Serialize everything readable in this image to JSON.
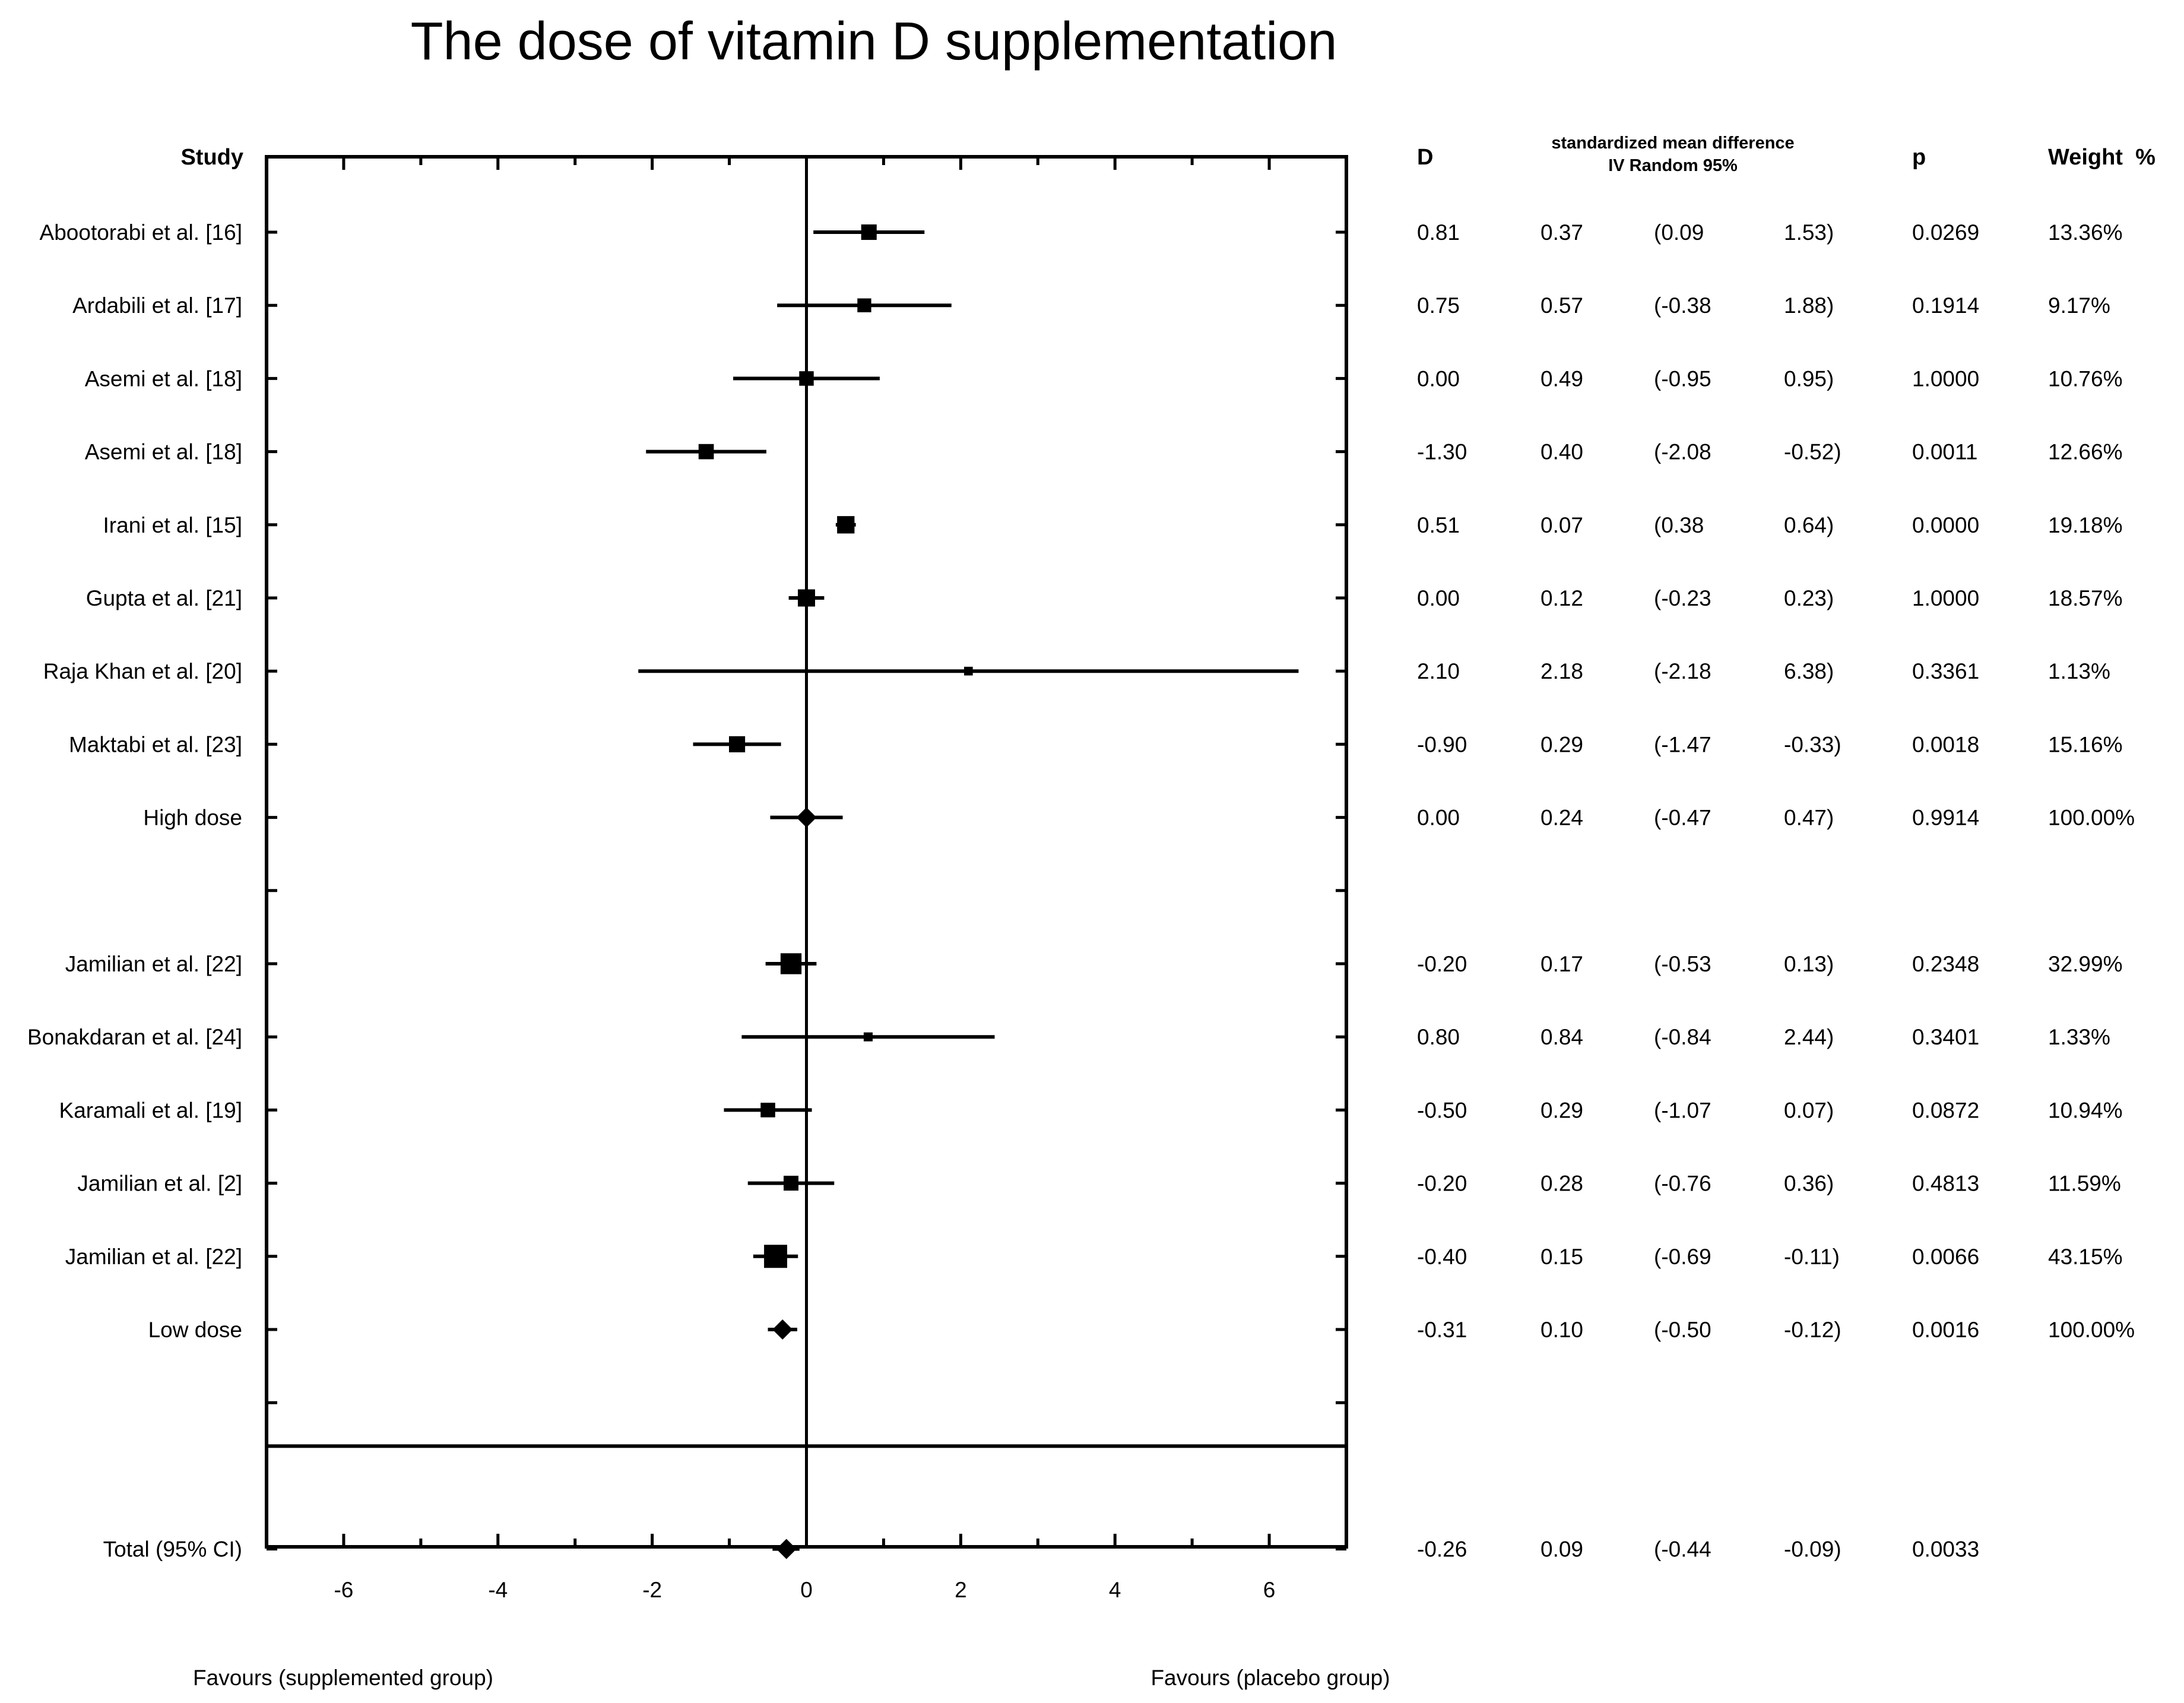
{
  "chart_data": {
    "type": "forest",
    "title": "The dose of vitamin D supplementation",
    "headers": {
      "study": "Study",
      "d": "D",
      "smd_line1": "standardized mean difference",
      "smd_line2": "IV Random 95%",
      "p": "p",
      "weight": "Weight  %"
    },
    "xlim": [
      -7,
      7
    ],
    "xticks": [
      "-6",
      "-4",
      "-2",
      "0",
      "2",
      "4",
      "6"
    ],
    "xtick_values": [
      -6,
      -4,
      -2,
      0,
      2,
      4,
      6
    ],
    "xlabel_left": "Favours (supplemented group)",
    "xlabel_right": "Favours (placebo group)",
    "rows": [
      {
        "study": "Abootorabi et al. [16]",
        "kind": "study",
        "d": 0.81,
        "se": 0.37,
        "lo": 0.09,
        "hi": 1.53,
        "d_text": "0.81",
        "se_text": "0.37",
        "lo_text": "(0.09",
        "hi_text": "1.53)",
        "p": "0.0269",
        "weight": "13.36%",
        "weight_value": 13.36
      },
      {
        "study": "Ardabili et al. [17]",
        "kind": "study",
        "d": 0.75,
        "se": 0.57,
        "lo": -0.38,
        "hi": 1.88,
        "d_text": "0.75",
        "se_text": "0.57",
        "lo_text": "(-0.38",
        "hi_text": "1.88)",
        "p": "0.1914",
        "weight": "9.17%",
        "weight_value": 9.17
      },
      {
        "study": "Asemi et al. [18]",
        "kind": "study",
        "d": 0.0,
        "se": 0.49,
        "lo": -0.95,
        "hi": 0.95,
        "d_text": "0.00",
        "se_text": "0.49",
        "lo_text": "(-0.95",
        "hi_text": "0.95)",
        "p": "1.0000",
        "weight": "10.76%",
        "weight_value": 10.76
      },
      {
        "study": "Asemi et al. [18]",
        "kind": "study",
        "d": -1.3,
        "se": 0.4,
        "lo": -2.08,
        "hi": -0.52,
        "d_text": "-1.30",
        "se_text": "0.40",
        "lo_text": "(-2.08",
        "hi_text": "-0.52)",
        "p": "0.0011",
        "weight": "12.66%",
        "weight_value": 12.66
      },
      {
        "study": "Irani et al. [15]",
        "kind": "study",
        "d": 0.51,
        "se": 0.07,
        "lo": 0.38,
        "hi": 0.64,
        "d_text": "0.51",
        "se_text": "0.07",
        "lo_text": "(0.38",
        "hi_text": "0.64)",
        "p": "0.0000",
        "weight": "19.18%",
        "weight_value": 19.18
      },
      {
        "study": "Gupta et al. [21]",
        "kind": "study",
        "d": 0.0,
        "se": 0.12,
        "lo": -0.23,
        "hi": 0.23,
        "d_text": "0.00",
        "se_text": "0.12",
        "lo_text": "(-0.23",
        "hi_text": "0.23)",
        "p": "1.0000",
        "weight": "18.57%",
        "weight_value": 18.57
      },
      {
        "study": "Raja Khan et al. [20]",
        "kind": "study",
        "d": 2.1,
        "se": 2.18,
        "lo": -2.18,
        "hi": 6.38,
        "d_text": "2.10",
        "se_text": "2.18",
        "lo_text": "(-2.18",
        "hi_text": "6.38)",
        "p": "0.3361",
        "weight": "1.13%",
        "weight_value": 1.13
      },
      {
        "study": "Maktabi et al. [23]",
        "kind": "study",
        "d": -0.9,
        "se": 0.29,
        "lo": -1.47,
        "hi": -0.33,
        "d_text": "-0.90",
        "se_text": "0.29",
        "lo_text": "(-1.47",
        "hi_text": "-0.33)",
        "p": "0.0018",
        "weight": "15.16%",
        "weight_value": 15.16
      },
      {
        "study": "High dose",
        "kind": "summary",
        "d": 0.0,
        "se": 0.24,
        "lo": -0.47,
        "hi": 0.47,
        "d_text": "0.00",
        "se_text": "0.24",
        "lo_text": "(-0.47",
        "hi_text": "0.47)",
        "p": "0.9914",
        "weight": "100.00%",
        "weight_value": 100.0
      },
      {
        "study": "",
        "kind": "blank"
      },
      {
        "study": "Jamilian et al. [22]",
        "kind": "study",
        "d": -0.2,
        "se": 0.17,
        "lo": -0.53,
        "hi": 0.13,
        "d_text": "-0.20",
        "se_text": "0.17",
        "lo_text": "(-0.53",
        "hi_text": "0.13)",
        "p": "0.2348",
        "weight": "32.99%",
        "weight_value": 32.99
      },
      {
        "study": "Bonakdaran et al. [24]",
        "kind": "study",
        "d": 0.8,
        "se": 0.84,
        "lo": -0.84,
        "hi": 2.44,
        "d_text": "0.80",
        "se_text": "0.84",
        "lo_text": "(-0.84",
        "hi_text": "2.44)",
        "p": "0.3401",
        "weight": "1.33%",
        "weight_value": 1.33
      },
      {
        "study": "Karamali et al. [19]",
        "kind": "study",
        "d": -0.5,
        "se": 0.29,
        "lo": -1.07,
        "hi": 0.07,
        "d_text": "-0.50",
        "se_text": "0.29",
        "lo_text": "(-1.07",
        "hi_text": "0.07)",
        "p": "0.0872",
        "weight": "10.94%",
        "weight_value": 10.94
      },
      {
        "study": "Jamilian et al. [2]",
        "kind": "study",
        "d": -0.2,
        "se": 0.28,
        "lo": -0.76,
        "hi": 0.36,
        "d_text": "-0.20",
        "se_text": "0.28",
        "lo_text": "(-0.76",
        "hi_text": "0.36)",
        "p": "0.4813",
        "weight": "11.59%",
        "weight_value": 11.59
      },
      {
        "study": "Jamilian et al. [22]",
        "kind": "study",
        "d": -0.4,
        "se": 0.15,
        "lo": -0.69,
        "hi": -0.11,
        "d_text": "-0.40",
        "se_text": "0.15",
        "lo_text": "(-0.69",
        "hi_text": "-0.11)",
        "p": "0.0066",
        "weight": "43.15%",
        "weight_value": 43.15
      },
      {
        "study": "Low dose",
        "kind": "summary",
        "d": -0.31,
        "se": 0.1,
        "lo": -0.5,
        "hi": -0.12,
        "d_text": "-0.31",
        "se_text": "0.10",
        "lo_text": "(-0.50",
        "hi_text": "-0.12)",
        "p": "0.0016",
        "weight": "100.00%",
        "weight_value": 100.0
      },
      {
        "study": "",
        "kind": "blank"
      },
      {
        "study": "",
        "kind": "separator"
      },
      {
        "study": "Total (95% CI)",
        "kind": "summary",
        "d": -0.26,
        "se": 0.09,
        "lo": -0.44,
        "hi": -0.09,
        "d_text": "-0.26",
        "se_text": "0.09",
        "lo_text": "(-0.44",
        "hi_text": "-0.09)",
        "p": "0.0033",
        "weight": "",
        "weight_value": null
      }
    ]
  }
}
